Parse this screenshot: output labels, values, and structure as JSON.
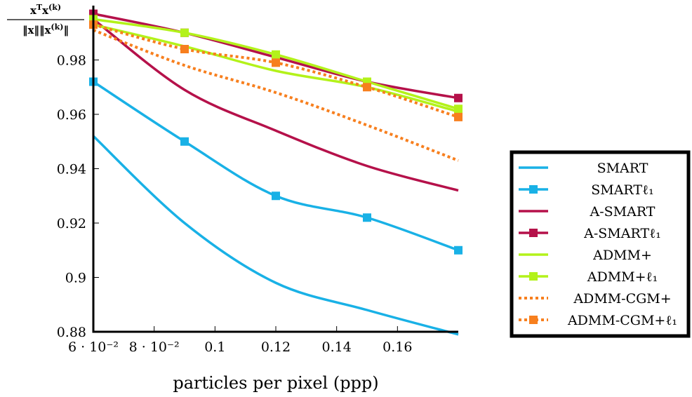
{
  "chart_data": {
    "type": "line",
    "title": "",
    "xlabel": "particles per pixel (ppp)",
    "ylabel": "x^T x^(k) / ||x|| ||x^(k)||",
    "xlim": [
      0.06,
      0.18
    ],
    "ylim": [
      0.88,
      1.0
    ],
    "x_ticks": [
      {
        "value": 0.06,
        "label": "6 · 10⁻²"
      },
      {
        "value": 0.08,
        "label": "8 · 10⁻²"
      },
      {
        "value": 0.1,
        "label": "0.1"
      },
      {
        "value": 0.12,
        "label": "0.12"
      },
      {
        "value": 0.14,
        "label": "0.14"
      },
      {
        "value": 0.16,
        "label": "0.16"
      }
    ],
    "y_ticks": [
      {
        "value": 0.88,
        "label": "0.88"
      },
      {
        "value": 0.9,
        "label": "0.9"
      },
      {
        "value": 0.92,
        "label": "0.92"
      },
      {
        "value": 0.94,
        "label": "0.94"
      },
      {
        "value": 0.96,
        "label": "0.96"
      },
      {
        "value": 0.98,
        "label": "0.98"
      }
    ],
    "grid": false,
    "legend_position": "right",
    "series": [
      {
        "name": "SMART",
        "color": "#19b1e6",
        "dash": "solid",
        "marker": false,
        "x": [
          0.06,
          0.09,
          0.12,
          0.15,
          0.18
        ],
        "y": [
          0.952,
          0.92,
          0.898,
          0.888,
          0.879
        ]
      },
      {
        "name": "SMARTℓ₁",
        "color": "#19b1e6",
        "dash": "solid",
        "marker": true,
        "x": [
          0.06,
          0.09,
          0.12,
          0.15,
          0.18
        ],
        "y": [
          0.972,
          0.95,
          0.93,
          0.922,
          0.91
        ]
      },
      {
        "name": "A-SMART",
        "color": "#b5114a",
        "dash": "solid",
        "marker": false,
        "x": [
          0.06,
          0.09,
          0.12,
          0.15,
          0.18
        ],
        "y": [
          0.995,
          0.969,
          0.954,
          0.941,
          0.932
        ]
      },
      {
        "name": "A-SMARTℓ₁",
        "color": "#b5114a",
        "dash": "solid",
        "marker": true,
        "x": [
          0.06,
          0.09,
          0.12,
          0.15,
          0.18
        ],
        "y": [
          0.997,
          0.99,
          0.981,
          0.972,
          0.966
        ]
      },
      {
        "name": "ADMM+",
        "color": "#b3f21a",
        "dash": "solid",
        "marker": false,
        "x": [
          0.06,
          0.09,
          0.12,
          0.15,
          0.18
        ],
        "y": [
          0.993,
          0.985,
          0.976,
          0.97,
          0.961
        ]
      },
      {
        "name": "ADMM+ℓ₁",
        "color": "#b3f21a",
        "dash": "solid",
        "marker": true,
        "x": [
          0.06,
          0.09,
          0.12,
          0.15,
          0.18
        ],
        "y": [
          0.995,
          0.99,
          0.982,
          0.972,
          0.962
        ]
      },
      {
        "name": "ADMM-CGM+",
        "color": "#f77f1e",
        "dash": "dotted",
        "marker": false,
        "x": [
          0.06,
          0.09,
          0.12,
          0.15,
          0.18
        ],
        "y": [
          0.991,
          0.978,
          0.968,
          0.956,
          0.943
        ]
      },
      {
        "name": "ADMM-CGM+ℓ₁",
        "color": "#f77f1e",
        "dash": "dotted",
        "marker": true,
        "x": [
          0.06,
          0.09,
          0.12,
          0.15,
          0.18
        ],
        "y": [
          0.993,
          0.984,
          0.979,
          0.97,
          0.959
        ]
      }
    ]
  }
}
